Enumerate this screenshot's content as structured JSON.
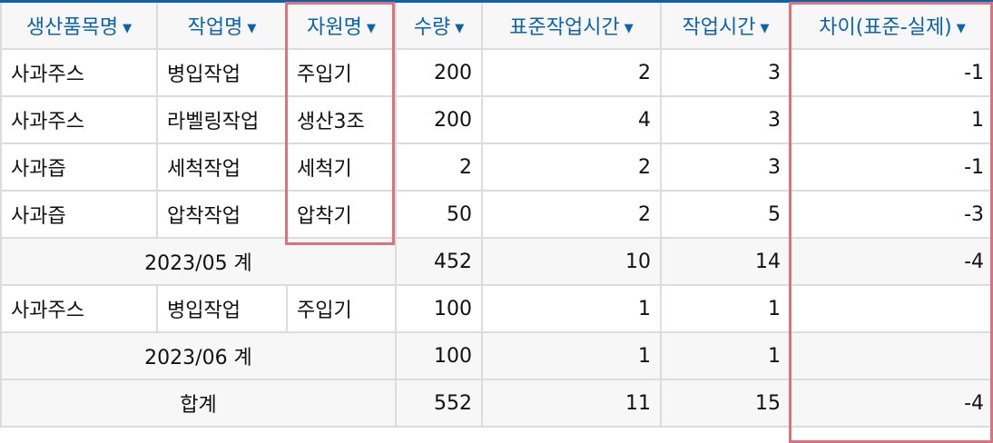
{
  "columns": [
    {
      "label": "생산품목명"
    },
    {
      "label": "작업명"
    },
    {
      "label": "자원명"
    },
    {
      "label": "수량"
    },
    {
      "label": "표준작업시간"
    },
    {
      "label": "작업시간"
    },
    {
      "label": "차이(표준-실제)"
    }
  ],
  "rows": [
    {
      "type": "data",
      "cells": [
        "사과주스",
        "병입작업",
        "주입기",
        "200",
        "2",
        "3",
        "-1"
      ]
    },
    {
      "type": "data",
      "cells": [
        "사과주스",
        "라벨링작업",
        "생산3조",
        "200",
        "4",
        "3",
        "1"
      ]
    },
    {
      "type": "data",
      "cells": [
        "사과즙",
        "세척작업",
        "세척기",
        "2",
        "2",
        "3",
        "-1"
      ]
    },
    {
      "type": "data",
      "cells": [
        "사과즙",
        "압착작업",
        "압착기",
        "50",
        "2",
        "5",
        "-3"
      ]
    },
    {
      "type": "subtotal",
      "label": "2023/05 계",
      "cells": [
        "452",
        "10",
        "14",
        "-4"
      ]
    },
    {
      "type": "data",
      "cells": [
        "사과주스",
        "병입작업",
        "주입기",
        "100",
        "1",
        "1",
        ""
      ]
    },
    {
      "type": "subtotal",
      "label": "2023/06 계",
      "cells": [
        "100",
        "1",
        "1",
        ""
      ]
    },
    {
      "type": "subtotal",
      "label": "합계",
      "cells": [
        "552",
        "11",
        "15",
        "-4"
      ]
    }
  ],
  "sort_icon": "caret-down-icon",
  "colors": {
    "header_text": "#0b63b0",
    "highlight": "#d9737d",
    "subtotal_bg": "#f7f7f7"
  }
}
